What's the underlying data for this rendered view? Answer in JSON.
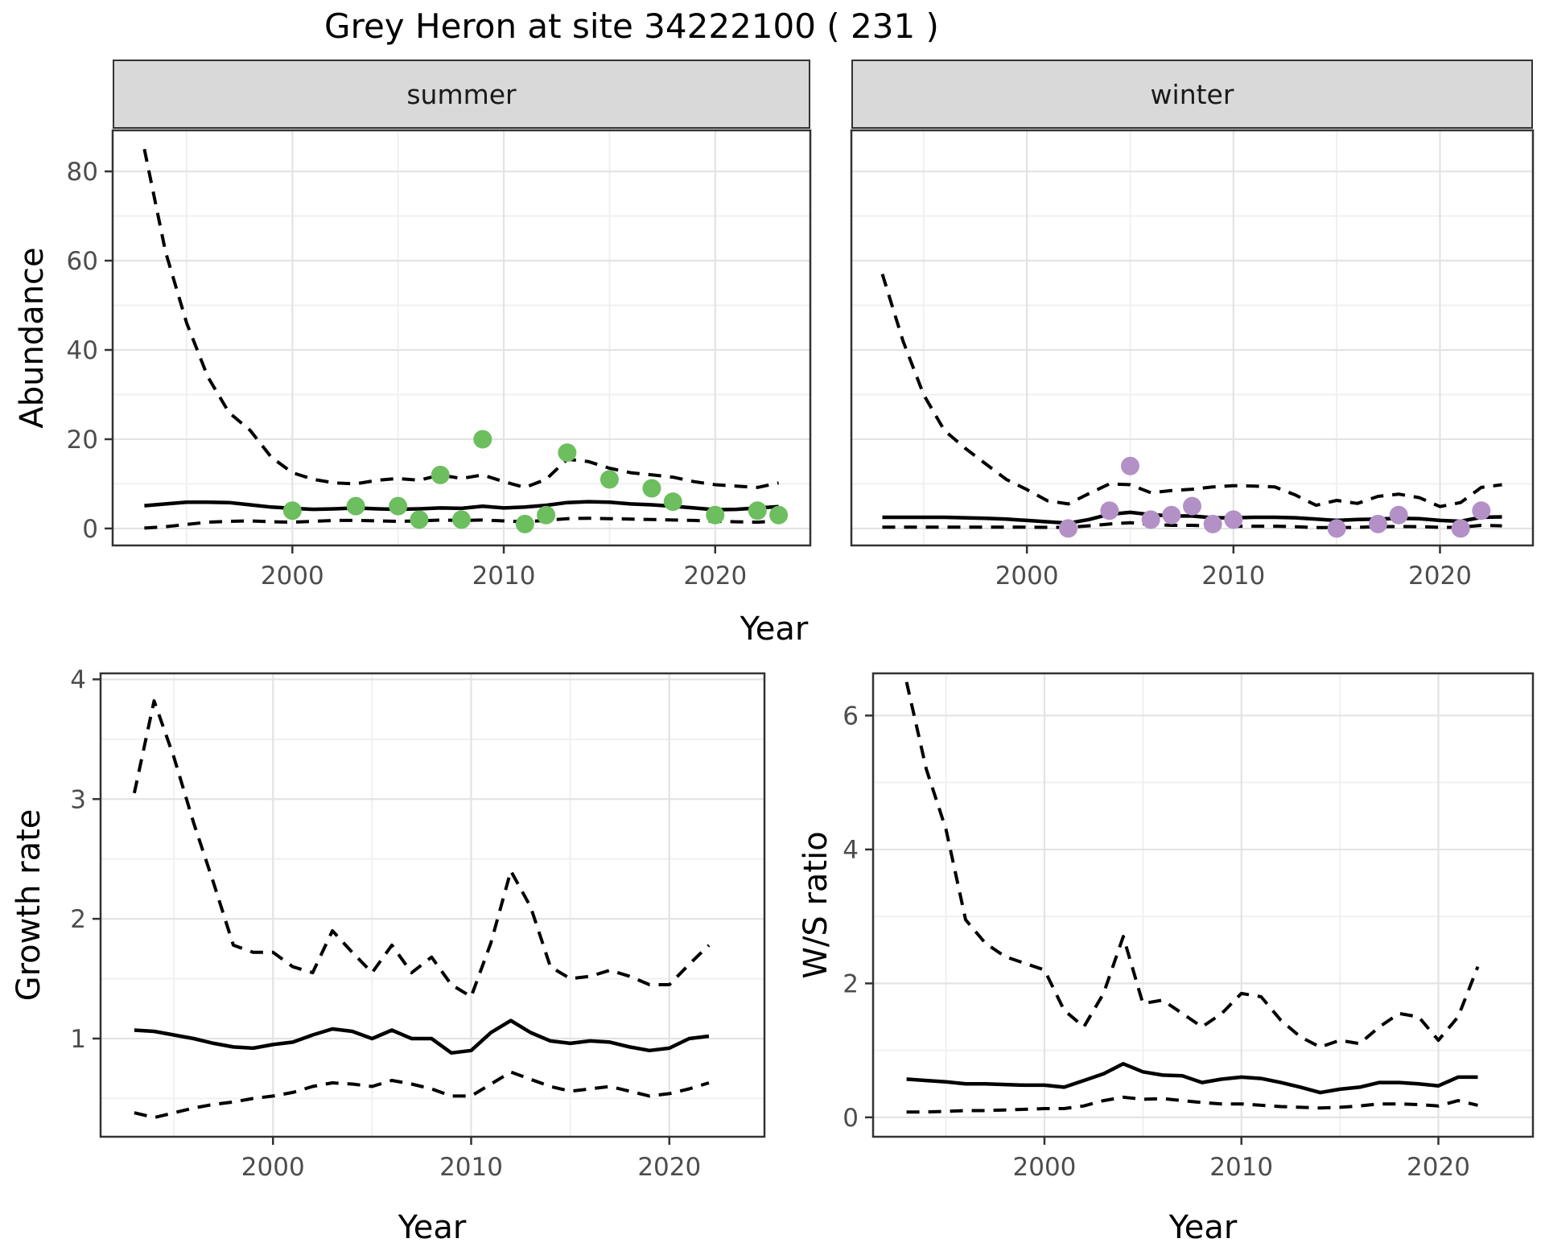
{
  "title": "Grey Heron at site 34222100 ( 231 )",
  "facets": [
    {
      "label": "summer"
    },
    {
      "label": "winter"
    }
  ],
  "colors": {
    "background": "#FFFFFF",
    "panel_border": "#333333",
    "grid_major": "#E3E3E3",
    "grid_minor": "#F0F0F0",
    "strip_background": "#D9D9D9",
    "strip_text": "#1A1A1A",
    "axis_text": "#4D4D4D",
    "axis_title": "#000000",
    "line": "#000000",
    "summer_points": "#6CBE5E",
    "winter_points": "#B390C6"
  },
  "chart_data": [
    {
      "id": "abundance_summer",
      "type": "line",
      "facet_label": "summer",
      "xlabel": "Year",
      "ylabel": "Abundance",
      "xlim": [
        1991.5,
        2024.5
      ],
      "ylim": [
        -3.8,
        89.2
      ],
      "x_ticks": [
        2000,
        2010,
        2020
      ],
      "x_minor": [
        1995,
        2005,
        2015
      ],
      "y_ticks": [
        0,
        20,
        40,
        60,
        80
      ],
      "y_minor": [
        10,
        30,
        50,
        70
      ],
      "grid": true,
      "series": [
        {
          "name": "ci_upper",
          "style": "dashed",
          "x": [
            1993,
            1994,
            1995,
            1996,
            1997,
            1998,
            1999,
            2000,
            2001,
            2002,
            2003,
            2004,
            2005,
            2006,
            2007,
            2008,
            2009,
            2010,
            2011,
            2012,
            2013,
            2014,
            2015,
            2016,
            2017,
            2018,
            2019,
            2020,
            2021,
            2022,
            2023
          ],
          "y": [
            85,
            62,
            46,
            34,
            26,
            22,
            16,
            12.5,
            11,
            10.2,
            10,
            10.8,
            11.2,
            10.8,
            12,
            11.2,
            12,
            10.5,
            9.2,
            11,
            15.5,
            15,
            13.5,
            12.5,
            12,
            11.5,
            10.5,
            9.8,
            9.5,
            9.2,
            10.2
          ]
        },
        {
          "name": "ci_lower",
          "style": "dashed",
          "x": [
            1993,
            1994,
            1995,
            1996,
            1997,
            1998,
            1999,
            2000,
            2001,
            2002,
            2003,
            2004,
            2005,
            2006,
            2007,
            2008,
            2009,
            2010,
            2011,
            2012,
            2013,
            2014,
            2015,
            2016,
            2017,
            2018,
            2019,
            2020,
            2021,
            2022,
            2023
          ],
          "y": [
            0.1,
            0.4,
            0.9,
            1.4,
            1.6,
            1.7,
            1.5,
            1.4,
            1.6,
            1.8,
            1.8,
            1.7,
            1.6,
            1.7,
            1.9,
            1.8,
            1.9,
            1.7,
            1.5,
            1.8,
            2.2,
            2.3,
            2.2,
            2.1,
            2.0,
            1.9,
            1.8,
            1.6,
            1.5,
            1.4,
            1.7
          ]
        },
        {
          "name": "mean",
          "style": "solid",
          "x": [
            1993,
            1994,
            1995,
            1996,
            1997,
            1998,
            1999,
            2000,
            2001,
            2002,
            2003,
            2004,
            2005,
            2006,
            2007,
            2008,
            2009,
            2010,
            2011,
            2012,
            2013,
            2014,
            2015,
            2016,
            2017,
            2018,
            2019,
            2020,
            2021,
            2022,
            2023
          ],
          "y": [
            5.1,
            5.5,
            5.9,
            5.9,
            5.8,
            5.3,
            4.8,
            4.5,
            4.3,
            4.4,
            4.6,
            4.4,
            4.3,
            4.4,
            4.6,
            4.5,
            5.0,
            4.6,
            4.8,
            5.2,
            5.8,
            6.0,
            5.9,
            5.5,
            5.3,
            5.0,
            4.6,
            4.2,
            4.3,
            4.6,
            4.9
          ]
        },
        {
          "name": "observed_counts",
          "style": "points",
          "color": "#6CBE5E",
          "x": [
            2000,
            2003,
            2005,
            2006,
            2007,
            2008,
            2009,
            2011,
            2012,
            2013,
            2015,
            2017,
            2018,
            2020,
            2022,
            2023
          ],
          "y": [
            4,
            5,
            5,
            2,
            12,
            2,
            20,
            1,
            3,
            17,
            11,
            9,
            6,
            3,
            4,
            3
          ]
        }
      ]
    },
    {
      "id": "abundance_winter",
      "type": "line",
      "facet_label": "winter",
      "xlabel": "Year",
      "ylabel": "Abundance",
      "xlim": [
        1991.5,
        2024.5
      ],
      "ylim": [
        -3.8,
        89.2
      ],
      "x_ticks": [
        2000,
        2010,
        2020
      ],
      "x_minor": [
        1995,
        2005,
        2015
      ],
      "y_ticks": [
        0,
        20,
        40,
        60,
        80
      ],
      "y_minor": [
        10,
        30,
        50,
        70
      ],
      "grid": true,
      "series": [
        {
          "name": "ci_upper",
          "style": "dashed",
          "x": [
            1993,
            1994,
            1995,
            1996,
            1997,
            1998,
            1999,
            2000,
            2001,
            2002,
            2003,
            2004,
            2005,
            2006,
            2007,
            2008,
            2009,
            2010,
            2011,
            2012,
            2013,
            2014,
            2015,
            2016,
            2017,
            2018,
            2019,
            2020,
            2021,
            2022,
            2023
          ],
          "y": [
            57,
            42,
            30,
            22,
            18,
            14.5,
            11,
            8.7,
            6.2,
            5.5,
            7.8,
            10,
            9.8,
            8.0,
            8.5,
            8.8,
            9.3,
            9.6,
            9.5,
            9.3,
            7.5,
            5.2,
            6.3,
            5.6,
            7.2,
            7.7,
            6.9,
            4.9,
            5.8,
            9.2,
            9.8
          ]
        },
        {
          "name": "ci_lower",
          "style": "dashed",
          "x": [
            1993,
            1994,
            1995,
            1996,
            1997,
            1998,
            1999,
            2000,
            2001,
            2002,
            2003,
            2004,
            2005,
            2006,
            2007,
            2008,
            2009,
            2010,
            2011,
            2012,
            2013,
            2014,
            2015,
            2016,
            2017,
            2018,
            2019,
            2020,
            2021,
            2022,
            2023
          ],
          "y": [
            0.3,
            0.3,
            0.3,
            0.3,
            0.3,
            0.3,
            0.3,
            0.3,
            0.25,
            0.25,
            0.6,
            1.0,
            1.3,
            0.9,
            0.7,
            0.7,
            0.6,
            0.5,
            0.5,
            0.5,
            0.4,
            0.2,
            0.2,
            0.25,
            0.4,
            0.45,
            0.4,
            0.25,
            0.25,
            0.7,
            0.6
          ]
        },
        {
          "name": "mean",
          "style": "solid",
          "x": [
            1993,
            1994,
            1995,
            1996,
            1997,
            1998,
            1999,
            2000,
            2001,
            2002,
            2003,
            2004,
            2005,
            2006,
            2007,
            2008,
            2009,
            2010,
            2011,
            2012,
            2013,
            2014,
            2015,
            2016,
            2017,
            2018,
            2019,
            2020,
            2021,
            2022,
            2023
          ],
          "y": [
            2.5,
            2.5,
            2.5,
            2.5,
            2.4,
            2.3,
            2.1,
            1.8,
            1.5,
            1.2,
            2.0,
            3.2,
            3.6,
            3.1,
            2.8,
            2.8,
            2.4,
            2.4,
            2.5,
            2.5,
            2.4,
            2.1,
            1.8,
            2.0,
            2.1,
            2.3,
            2.2,
            1.8,
            1.6,
            2.5,
            2.6
          ]
        },
        {
          "name": "observed_counts",
          "style": "points",
          "color": "#B390C6",
          "x": [
            2002,
            2004,
            2005,
            2006,
            2007,
            2008,
            2009,
            2010,
            2015,
            2017,
            2018,
            2021,
            2022
          ],
          "y": [
            0,
            4,
            14,
            2,
            3,
            5,
            1,
            2,
            0,
            1,
            3,
            0,
            4
          ]
        }
      ]
    },
    {
      "id": "growth_rate",
      "type": "line",
      "xlabel": "Year",
      "ylabel": "Growth rate",
      "xlim": [
        1991.3,
        2024.8
      ],
      "ylim": [
        0.18,
        4.05
      ],
      "x_ticks": [
        2000,
        2010,
        2020
      ],
      "x_minor": [
        1995,
        2005,
        2015
      ],
      "y_ticks": [
        1,
        2,
        3,
        4
      ],
      "y_minor": [
        0.5,
        1.5,
        2.5,
        3.5
      ],
      "grid": true,
      "series": [
        {
          "name": "ci_upper",
          "style": "dashed",
          "x": [
            1993,
            1994,
            1995,
            1996,
            1997,
            1998,
            1999,
            2000,
            2001,
            2002,
            2003,
            2004,
            2005,
            2006,
            2007,
            2008,
            2009,
            2010,
            2011,
            2012,
            2013,
            2014,
            2015,
            2016,
            2017,
            2018,
            2019,
            2020,
            2021,
            2022
          ],
          "y": [
            3.05,
            3.82,
            3.35,
            2.8,
            2.3,
            1.78,
            1.72,
            1.72,
            1.6,
            1.55,
            1.9,
            1.72,
            1.55,
            1.78,
            1.55,
            1.68,
            1.45,
            1.35,
            1.8,
            2.4,
            2.1,
            1.6,
            1.5,
            1.52,
            1.57,
            1.52,
            1.45,
            1.45,
            1.62,
            1.78
          ]
        },
        {
          "name": "ci_lower",
          "style": "dashed",
          "x": [
            1993,
            1994,
            1995,
            1996,
            1997,
            1998,
            1999,
            2000,
            2001,
            2002,
            2003,
            2004,
            2005,
            2006,
            2007,
            2008,
            2009,
            2010,
            2011,
            2012,
            2013,
            2014,
            2015,
            2016,
            2017,
            2018,
            2019,
            2020,
            2021,
            2022
          ],
          "y": [
            0.38,
            0.34,
            0.38,
            0.42,
            0.45,
            0.47,
            0.5,
            0.52,
            0.55,
            0.6,
            0.63,
            0.62,
            0.6,
            0.65,
            0.62,
            0.58,
            0.52,
            0.52,
            0.62,
            0.72,
            0.66,
            0.6,
            0.56,
            0.58,
            0.6,
            0.56,
            0.52,
            0.54,
            0.58,
            0.63
          ]
        },
        {
          "name": "mean",
          "style": "solid",
          "x": [
            1993,
            1994,
            1995,
            1996,
            1997,
            1998,
            1999,
            2000,
            2001,
            2002,
            2003,
            2004,
            2005,
            2006,
            2007,
            2008,
            2009,
            2010,
            2011,
            2012,
            2013,
            2014,
            2015,
            2016,
            2017,
            2018,
            2019,
            2020,
            2021,
            2022
          ],
          "y": [
            1.07,
            1.06,
            1.03,
            1.0,
            0.96,
            0.93,
            0.92,
            0.95,
            0.97,
            1.03,
            1.08,
            1.06,
            1.0,
            1.07,
            1.0,
            1.0,
            0.88,
            0.9,
            1.05,
            1.15,
            1.05,
            0.98,
            0.96,
            0.98,
            0.97,
            0.93,
            0.9,
            0.92,
            1.0,
            1.02
          ]
        }
      ]
    },
    {
      "id": "ws_ratio",
      "type": "line",
      "xlabel": "Year",
      "ylabel": "W/S ratio",
      "xlim": [
        1991.3,
        2024.8
      ],
      "ylim": [
        -0.29,
        6.63
      ],
      "x_ticks": [
        2000,
        2010,
        2020
      ],
      "x_minor": [
        1995,
        2005,
        2015
      ],
      "y_ticks": [
        0,
        2,
        4,
        6
      ],
      "y_minor": [
        1,
        3,
        5
      ],
      "grid": true,
      "series": [
        {
          "name": "ci_upper",
          "style": "dashed",
          "x": [
            1993,
            1994,
            1995,
            1996,
            1997,
            1998,
            1999,
            2000,
            2001,
            2002,
            2003,
            2004,
            2005,
            2006,
            2007,
            2008,
            2009,
            2010,
            2011,
            2012,
            2013,
            2014,
            2015,
            2016,
            2017,
            2018,
            2019,
            2020,
            2021,
            2022
          ],
          "y": [
            6.5,
            5.2,
            4.3,
            2.95,
            2.6,
            2.4,
            2.3,
            2.2,
            1.6,
            1.35,
            1.85,
            2.7,
            1.7,
            1.75,
            1.55,
            1.35,
            1.55,
            1.85,
            1.8,
            1.45,
            1.2,
            1.05,
            1.15,
            1.1,
            1.35,
            1.55,
            1.5,
            1.15,
            1.5,
            2.25
          ]
        },
        {
          "name": "ci_lower",
          "style": "dashed",
          "x": [
            1993,
            1994,
            1995,
            1996,
            1997,
            1998,
            1999,
            2000,
            2001,
            2002,
            2003,
            2004,
            2005,
            2006,
            2007,
            2008,
            2009,
            2010,
            2011,
            2012,
            2013,
            2014,
            2015,
            2016,
            2017,
            2018,
            2019,
            2020,
            2021,
            2022
          ],
          "y": [
            0.08,
            0.08,
            0.09,
            0.1,
            0.1,
            0.11,
            0.12,
            0.13,
            0.13,
            0.17,
            0.25,
            0.3,
            0.27,
            0.28,
            0.25,
            0.22,
            0.2,
            0.2,
            0.18,
            0.16,
            0.15,
            0.14,
            0.15,
            0.17,
            0.2,
            0.2,
            0.19,
            0.17,
            0.25,
            0.18
          ]
        },
        {
          "name": "mean",
          "style": "solid",
          "x": [
            1993,
            1994,
            1995,
            1996,
            1997,
            1998,
            1999,
            2000,
            2001,
            2002,
            2003,
            2004,
            2005,
            2006,
            2007,
            2008,
            2009,
            2010,
            2011,
            2012,
            2013,
            2014,
            2015,
            2016,
            2017,
            2018,
            2019,
            2020,
            2021,
            2022
          ],
          "y": [
            0.57,
            0.55,
            0.53,
            0.5,
            0.5,
            0.49,
            0.48,
            0.48,
            0.45,
            0.55,
            0.65,
            0.8,
            0.68,
            0.63,
            0.62,
            0.52,
            0.57,
            0.6,
            0.58,
            0.52,
            0.45,
            0.37,
            0.42,
            0.45,
            0.52,
            0.52,
            0.5,
            0.47,
            0.6,
            0.6
          ]
        }
      ]
    }
  ]
}
